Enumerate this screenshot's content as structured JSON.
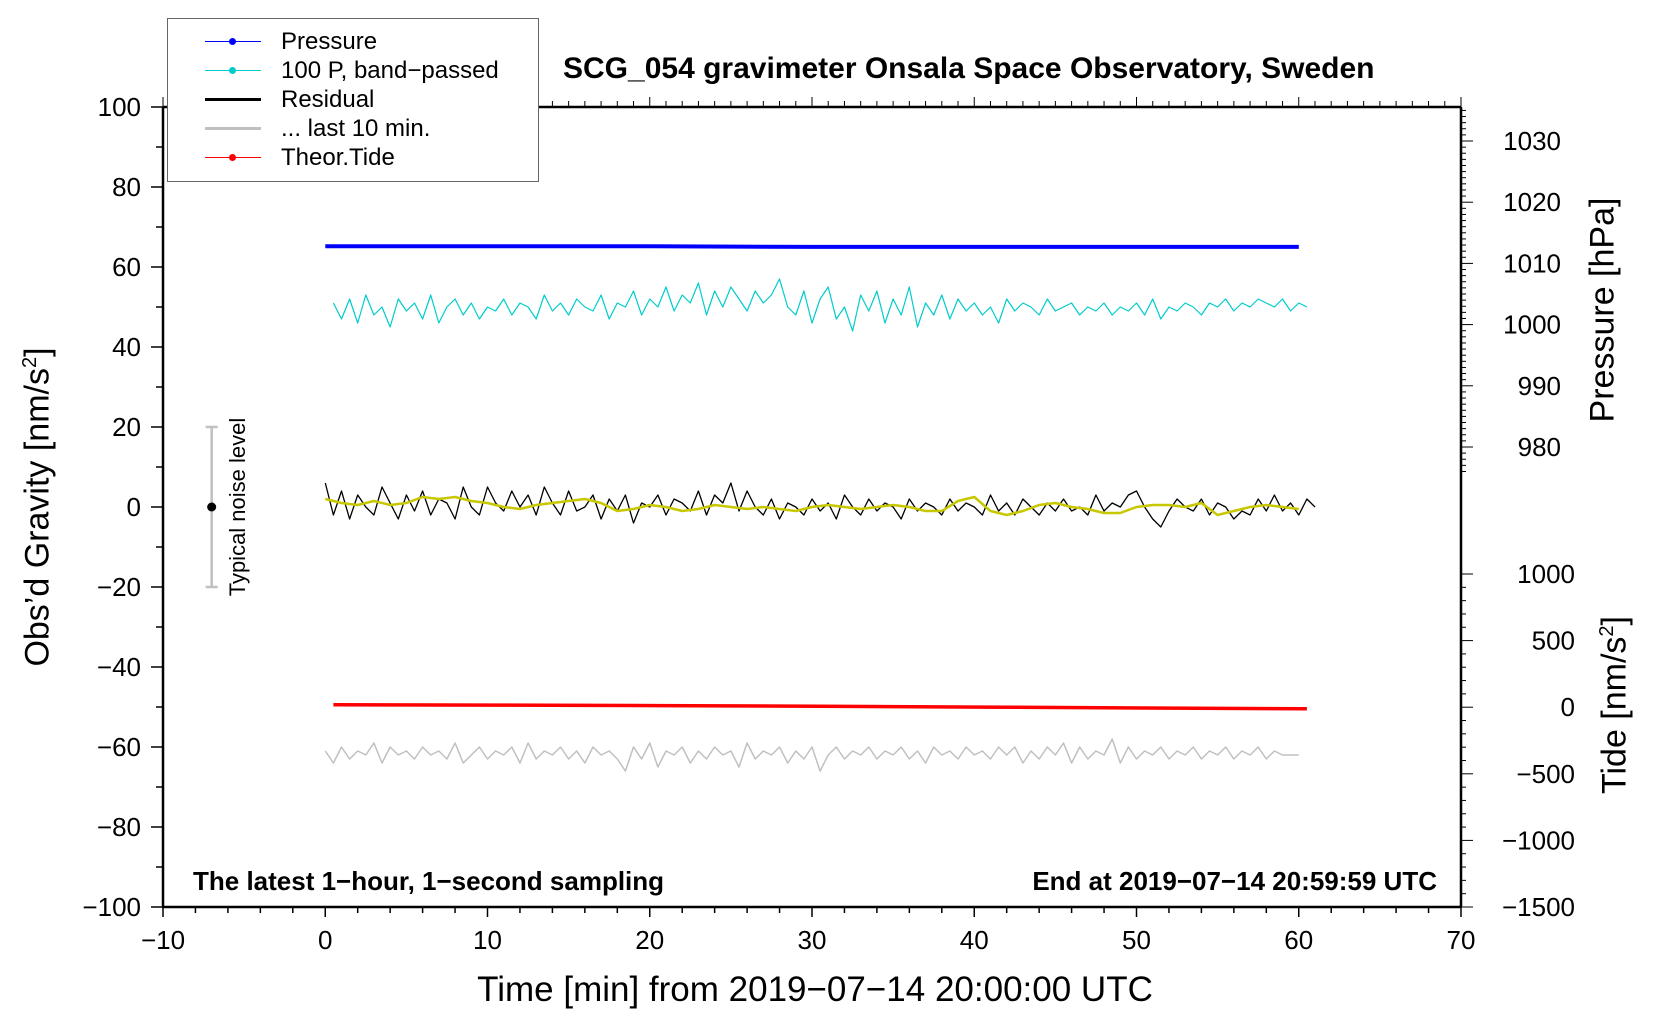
{
  "chart_data": {
    "type": "line",
    "title": "SCG_054 gravimeter Onsala Space Observatory, Sweden",
    "xlabel": "Time [min] from 2019−07−14 20:00:00 UTC",
    "ylabel": "Obs’d Gravity [nm/s",
    "ylabel_sup": "2",
    "ylabel_close": "]",
    "y2label": "Pressure [hPa]",
    "y3label": "Tide [nm/s",
    "y3label_sup": "2",
    "y3label_close": "]",
    "xlim": [
      -10,
      70
    ],
    "ylim": [
      -100,
      100
    ],
    "pressure_lim": [
      980,
      1030
    ],
    "tide_lim": [
      -1500,
      1000
    ],
    "x_ticks": [
      -10,
      0,
      10,
      20,
      30,
      40,
      50,
      60,
      70
    ],
    "y_ticks": [
      -100,
      -80,
      -60,
      -40,
      -20,
      0,
      20,
      40,
      60,
      80,
      100
    ],
    "pressure_ticks": [
      980,
      990,
      1000,
      1010,
      1020,
      1030
    ],
    "tide_ticks": [
      -1500,
      -1000,
      -500,
      0,
      500,
      1000
    ],
    "notes": {
      "left": "The latest 1−hour, 1−second sampling",
      "right": "End at 2019−07−14 20:59:59 UTC"
    },
    "noise_marker": {
      "label": "Typical noise level",
      "x": -7,
      "center": 0,
      "low": -20,
      "high": 20
    },
    "legend": [
      {
        "label": "Pressure",
        "color": "#0000ff",
        "dot": true
      },
      {
        "label": "100 P, band−passed",
        "color": "#00cccc",
        "dot": true
      },
      {
        "label": "Residual",
        "color": "#000000",
        "dot": false
      },
      {
        "label": "... last 10 min.",
        "color": "#c0c0c0",
        "dot": false
      },
      {
        "label": "Theor.Tide",
        "color": "#ff0000",
        "dot": true
      }
    ],
    "series": [
      {
        "name": "Pressure",
        "axis": "pressure",
        "color": "#0000ff",
        "x_start": 0,
        "x_step": 10,
        "values": [
          1012.8,
          1012.8,
          1012.8,
          1012.7,
          1012.7,
          1012.7,
          1012.7
        ]
      },
      {
        "name": "100 P, band-passed",
        "axis": "gravity",
        "color": "#00cccc",
        "x_start": 0.5,
        "x_step": 0.5,
        "values": [
          51,
          47,
          52,
          46,
          53,
          48,
          50,
          45,
          52,
          49,
          51,
          47,
          53,
          46,
          50,
          52,
          48,
          51,
          47,
          50,
          49,
          52,
          48,
          51,
          50,
          47,
          53,
          49,
          51,
          48,
          52,
          50,
          49,
          53,
          47,
          51,
          50,
          54,
          48,
          52,
          50,
          55,
          49,
          53,
          51,
          56,
          48,
          54,
          50,
          55,
          52,
          49,
          54,
          51,
          53,
          57,
          50,
          48,
          54,
          46,
          52,
          55,
          47,
          50,
          44,
          53,
          49,
          54,
          46,
          52,
          48,
          55,
          45,
          51,
          48,
          53,
          47,
          52,
          49,
          51,
          48,
          50,
          46,
          52,
          49,
          51,
          50,
          48,
          52,
          49,
          50,
          51,
          48,
          50,
          49,
          51,
          48,
          50,
          49,
          51,
          48,
          52,
          47,
          50,
          49,
          51,
          50,
          48,
          51,
          50,
          52,
          49,
          51,
          50,
          52,
          51,
          50,
          52,
          49,
          51,
          50
        ]
      },
      {
        "name": "Residual",
        "axis": "gravity",
        "color": "#000000",
        "x_start": 0,
        "x_step": 0.5,
        "values": [
          6,
          -2,
          4,
          -3,
          3,
          0,
          -2,
          5,
          1,
          -3,
          3,
          -1,
          4,
          -2,
          2,
          1,
          -3,
          5,
          0,
          -2,
          5,
          1,
          -1,
          4,
          0,
          3,
          -2,
          5,
          1,
          -2,
          4,
          -1,
          0,
          3,
          -3,
          2,
          -1,
          3,
          -4,
          1,
          0,
          3,
          -2,
          2,
          1,
          -1,
          4,
          -2,
          3,
          1,
          6,
          -1,
          4,
          0,
          -2,
          2,
          -3,
          1,
          0,
          -2,
          2,
          -1,
          1,
          -3,
          3,
          0,
          -2,
          2,
          -1,
          1,
          0,
          -3,
          2,
          -1,
          1,
          0,
          -2,
          2,
          -1,
          1,
          0,
          -2,
          3,
          -1,
          1,
          -2,
          2,
          0,
          -2,
          1,
          -1,
          2,
          -1,
          0,
          -2,
          3,
          -1,
          1,
          0,
          3,
          4,
          0,
          -3,
          -5,
          -1,
          2,
          0,
          -1,
          2,
          -2,
          1,
          0,
          -3,
          -1,
          -2,
          2,
          -1,
          3,
          -1,
          1,
          -2,
          2,
          0
        ]
      },
      {
        "name": "Residual (smoothed)",
        "axis": "gravity",
        "color": "#c8c800",
        "x_start": 0,
        "x_step": 1,
        "values": [
          2.0,
          1.0,
          0.5,
          1.5,
          0.5,
          1.0,
          2.5,
          2.0,
          2.5,
          1.5,
          1.0,
          0.0,
          -0.5,
          0.5,
          1.0,
          1.5,
          2.0,
          1.0,
          -1.0,
          -0.5,
          0.5,
          0.0,
          -1.0,
          -0.5,
          0.5,
          0.0,
          -0.5,
          0.0,
          -0.5,
          -1.0,
          0.0,
          0.5,
          0.0,
          -0.5,
          0.0,
          0.5,
          0.0,
          -1.0,
          -1.0,
          1.5,
          2.5,
          -1.0,
          -2.0,
          -1.0,
          0.5,
          1.0,
          0.0,
          -0.5,
          -1.5,
          -1.5,
          0.0,
          0.5,
          0.5,
          0.0,
          1.0,
          -2.0,
          -1.0,
          0.0,
          0.5,
          0.0,
          -0.5
        ]
      },
      {
        "name": "... last 10 min.",
        "axis": "gravity",
        "color": "#c0c0c0",
        "x_start": 0,
        "x_step": 0.5,
        "values": [
          -61,
          -64,
          -60,
          -63,
          -61,
          -62,
          -59,
          -64,
          -60,
          -62,
          -61,
          -63,
          -60,
          -62,
          -61,
          -63,
          -59,
          -64,
          -62,
          -60,
          -63,
          -61,
          -62,
          -60,
          -64,
          -59,
          -63,
          -61,
          -62,
          -60,
          -63,
          -61,
          -64,
          -60,
          -62,
          -61,
          -63,
          -66,
          -60,
          -63,
          -59,
          -65,
          -61,
          -62,
          -60,
          -64,
          -61,
          -63,
          -60,
          -62,
          -61,
          -65,
          -59,
          -63,
          -61,
          -62,
          -60,
          -64,
          -61,
          -63,
          -60,
          -66,
          -62,
          -60,
          -63,
          -61,
          -62,
          -60,
          -63,
          -61,
          -62,
          -60,
          -63,
          -61,
          -64,
          -60,
          -62,
          -61,
          -63,
          -60,
          -62,
          -61,
          -63,
          -60,
          -62,
          -60,
          -64,
          -61,
          -63,
          -60,
          -62,
          -59,
          -64,
          -60,
          -63,
          -61,
          -62,
          -58,
          -64,
          -60,
          -63,
          -61,
          -62,
          -60,
          -63,
          -61,
          -62,
          -60,
          -63,
          -61,
          -62,
          -60,
          -63,
          -61,
          -62,
          -60,
          -63,
          -61,
          -62,
          -62,
          -62
        ]
      },
      {
        "name": "Theor.Tide",
        "axis": "tide",
        "color": "#ff0000",
        "x_start": 0.5,
        "x_step": 10,
        "values": [
          19,
          16,
          12,
          7,
          1,
          -6,
          -12
        ]
      }
    ]
  }
}
